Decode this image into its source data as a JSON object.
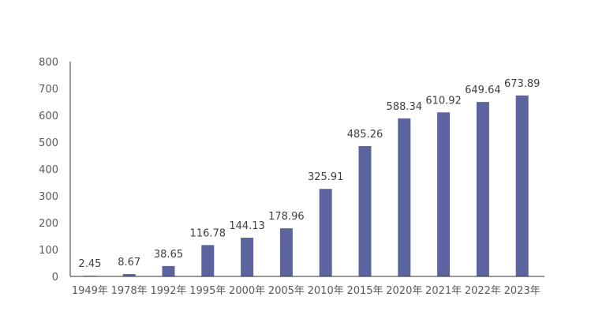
{
  "chart_data": {
    "type": "bar",
    "categories": [
      "1949年",
      "1978年",
      "1992年",
      "1995年",
      "2000年",
      "2005年",
      "2010年",
      "2015年",
      "2020年",
      "2021年",
      "2022年",
      "2023年"
    ],
    "values": [
      2.45,
      8.67,
      38.65,
      116.78,
      144.13,
      178.96,
      325.91,
      485.26,
      588.34,
      610.92,
      649.64,
      673.89
    ],
    "data_labels": [
      "2.45",
      "8.67",
      "38.65",
      "116.78",
      "144.13",
      "178.96",
      "325.91",
      "485.26",
      "588.34",
      "610.92",
      "649.64",
      "673.89"
    ],
    "y_ticks": [
      "0",
      "100",
      "200",
      "300",
      "400",
      "500",
      "600",
      "700",
      "800"
    ],
    "ylim": [
      0,
      800
    ],
    "grid": false,
    "legend": "none",
    "colors": {
      "bar": "#5b649e",
      "axis": "#333333"
    }
  }
}
